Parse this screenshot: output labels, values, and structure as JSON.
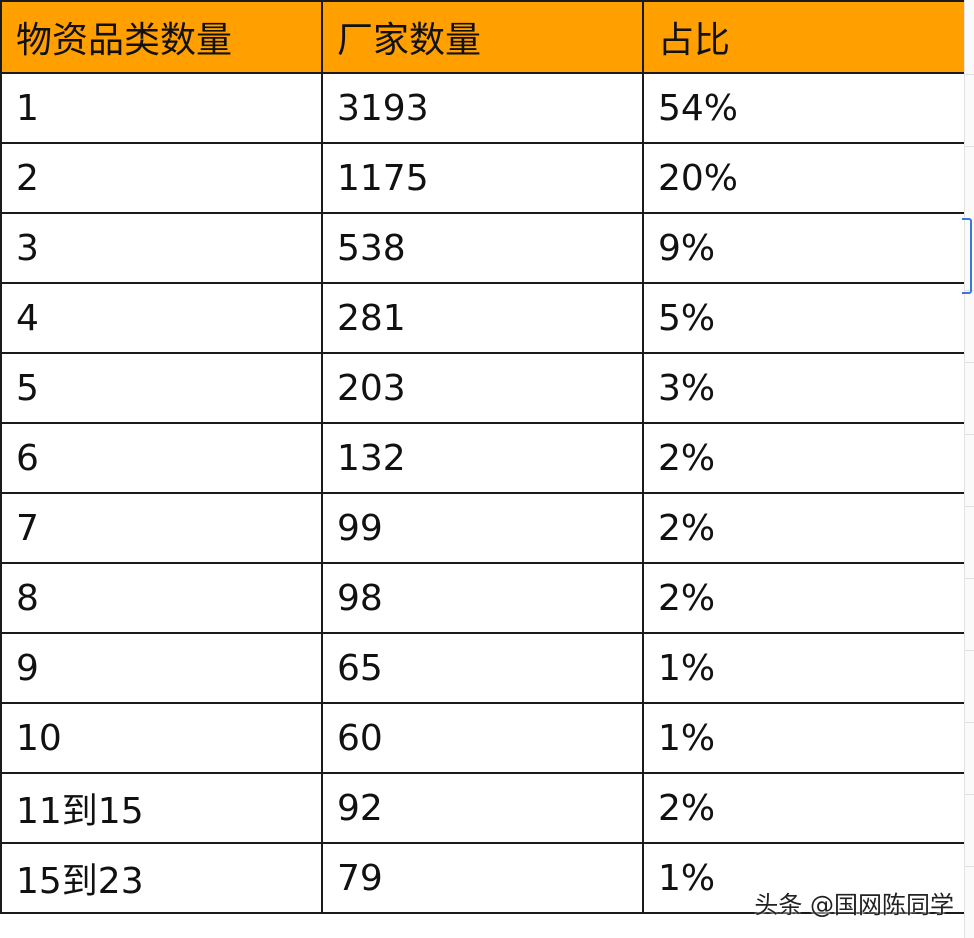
{
  "table": {
    "headers": [
      "物资品类数量",
      "厂家数量",
      "占比"
    ],
    "rows": [
      [
        "1",
        "3193",
        "54%"
      ],
      [
        "2",
        "1175",
        "20%"
      ],
      [
        "3",
        "538",
        "9%"
      ],
      [
        "4",
        "281",
        "5%"
      ],
      [
        "5",
        "203",
        "3%"
      ],
      [
        "6",
        "132",
        "2%"
      ],
      [
        "7",
        "99",
        "2%"
      ],
      [
        "8",
        "98",
        "2%"
      ],
      [
        "9",
        "65",
        "1%"
      ],
      [
        "10",
        "60",
        "1%"
      ],
      [
        "11到15",
        "92",
        "2%"
      ],
      [
        "15到23",
        "79",
        "1%"
      ]
    ]
  },
  "watermark": "头条 @国网陈同学",
  "colors": {
    "header_bg": "#ff9f00",
    "grid_line": "#1a1a1a",
    "selection": "#3a78d8"
  }
}
